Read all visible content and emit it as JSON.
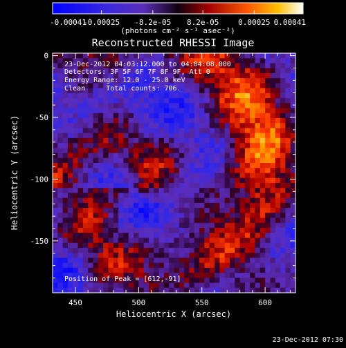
{
  "chart_data": {
    "type": "heatmap",
    "title": "Reconstructed RHESSI Image",
    "xlabel": "Heliocentric X (arcsec)",
    "ylabel": "Heliocentric Y (arcsec)",
    "xlim": [
      432,
      624
    ],
    "ylim": [
      -192,
      2
    ],
    "x_ticks": [
      450,
      500,
      550,
      600
    ],
    "y_ticks": [
      0,
      -50,
      -100,
      -150
    ],
    "grid": false,
    "colorbar": {
      "position": "top",
      "range": [
        -0.00041,
        0.00041
      ],
      "tick_values": [
        -0.00041,
        -0.00025,
        -8.2e-05,
        8.2e-05,
        0.00025,
        0.00041
      ],
      "tick_labels": [
        "-0.00041",
        "-0.00025",
        "-8.2e-05",
        "8.2e-05",
        "0.00025",
        "0.00041"
      ],
      "unit_label": "(photons cm⁻² s⁻¹ asec⁻²)"
    },
    "info_lines": [
      "23-Dec-2012 04:03:12.000 to 04:04:08.000",
      "Detectors: 3F 5F 6F 7F 8F 9F, Att 0",
      "Energy Range: 12.0 - 25.0 keV",
      "Clean     Total counts: 706."
    ],
    "peak_label": "Position of Peak = [612,-91]",
    "peak_position": [
      612,
      -91
    ],
    "grid_size": [
      48,
      48
    ]
  },
  "footer": {
    "timestamp": "23-Dec-2012 07:30"
  }
}
